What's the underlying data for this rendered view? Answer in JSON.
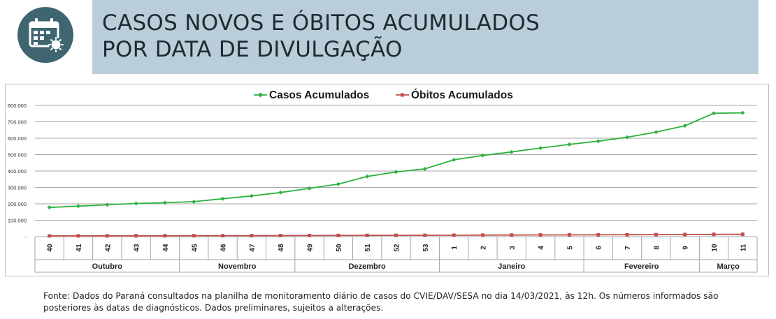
{
  "header": {
    "title_line1": "CASOS NOVOS E ÓBITOS ACUMULADOS",
    "title_line2": "POR DATA DE DIVULGAÇÃO",
    "icon": "calendar-virus-icon",
    "icon_color": "#3f6670",
    "band_color": "#b9ced8"
  },
  "chart_data": {
    "type": "line",
    "title": "",
    "xlabel": "",
    "ylabel": "",
    "legend_position": "top-center",
    "grid": true,
    "ylim": [
      0,
      800000
    ],
    "yticks": [
      "-",
      "100.000",
      "200.000",
      "300.000",
      "400.000",
      "500.000",
      "600.000",
      "700.000",
      "800.000"
    ],
    "categories": [
      "40",
      "41",
      "42",
      "43",
      "44",
      "45",
      "46",
      "47",
      "48",
      "49",
      "50",
      "51",
      "52",
      "53",
      "1",
      "2",
      "3",
      "4",
      "5",
      "6",
      "7",
      "8",
      "9",
      "10",
      "11"
    ],
    "month_groups": [
      {
        "label": "Outubro",
        "span": 5
      },
      {
        "label": "Novembro",
        "span": 4
      },
      {
        "label": "Dezembro",
        "span": 5
      },
      {
        "label": "Janeiro",
        "span": 5
      },
      {
        "label": "Fevereiro",
        "span": 4
      },
      {
        "label": "Março",
        "span": 2
      }
    ],
    "series": [
      {
        "name": "Casos Acumulados",
        "color": "#2eb13d",
        "marker": "diamond",
        "values": [
          178000,
          186000,
          194000,
          202000,
          207000,
          213000,
          231000,
          248000,
          269000,
          294000,
          320000,
          367000,
          394000,
          413000,
          468000,
          495000,
          516000,
          540000,
          562000,
          582000,
          606000,
          637000,
          676000,
          752000,
          755000
        ]
      },
      {
        "name": "Óbitos Acumulados",
        "color": "#c0504d",
        "marker": "square",
        "values": [
          4500,
          4700,
          4900,
          5100,
          5300,
          5500,
          5800,
          6100,
          6400,
          6800,
          7200,
          7600,
          7900,
          8200,
          8700,
          9200,
          9700,
          10200,
          10700,
          11200,
          11800,
          12300,
          12900,
          13800,
          14200
        ]
      }
    ]
  },
  "source_note": "Fonte: Dados do Paraná consultados na planilha de monitoramento diário de casos do CVIE/DAV/SESA no dia 14/03/2021, às 12h. Os números informados são posteriores às datas de diagnósticos. Dados preliminares, sujeitos a alterações."
}
